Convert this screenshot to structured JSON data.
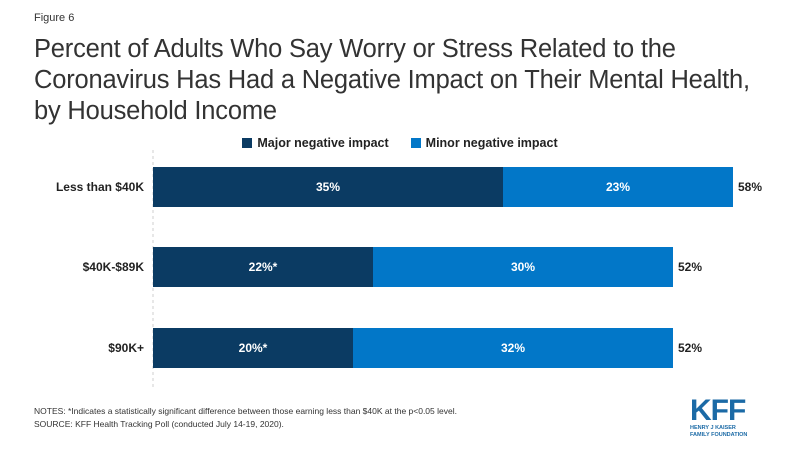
{
  "figure_label": "Figure 6",
  "title": "Percent of Adults Who Say Worry or Stress Related to the Coronavirus Has Had a Negative Impact on Their Mental Health, by Household Income",
  "colors": {
    "major": "#0b3b63",
    "minor": "#0277c8"
  },
  "chart_data": {
    "type": "bar",
    "orientation": "horizontal",
    "stacked": true,
    "categories": [
      "Less than $40K",
      "$40K-$89K",
      "$90K+"
    ],
    "series": [
      {
        "name": "Major negative impact",
        "values": [
          35,
          22,
          20
        ],
        "labels": [
          "35%",
          "22%*",
          "20%*"
        ]
      },
      {
        "name": "Minor negative impact",
        "values": [
          23,
          30,
          32
        ],
        "labels": [
          "23%",
          "30%",
          "32%"
        ]
      }
    ],
    "totals": [
      58,
      52,
      52
    ],
    "total_labels": [
      "58%",
      "52%",
      "52%"
    ],
    "xlim": [
      0,
      60
    ],
    "legend_position": "top",
    "grid": false
  },
  "notes": [
    "NOTES: *Indicates a statistically significant difference between those earning less than $40K at the p<0.05 level.",
    "SOURCE: KFF Health Tracking Poll (conducted July 14-19, 2020)."
  ],
  "logo": {
    "main": "KFF",
    "sub1": "HENRY J KAISER",
    "sub2": "FAMILY FOUNDATION"
  }
}
